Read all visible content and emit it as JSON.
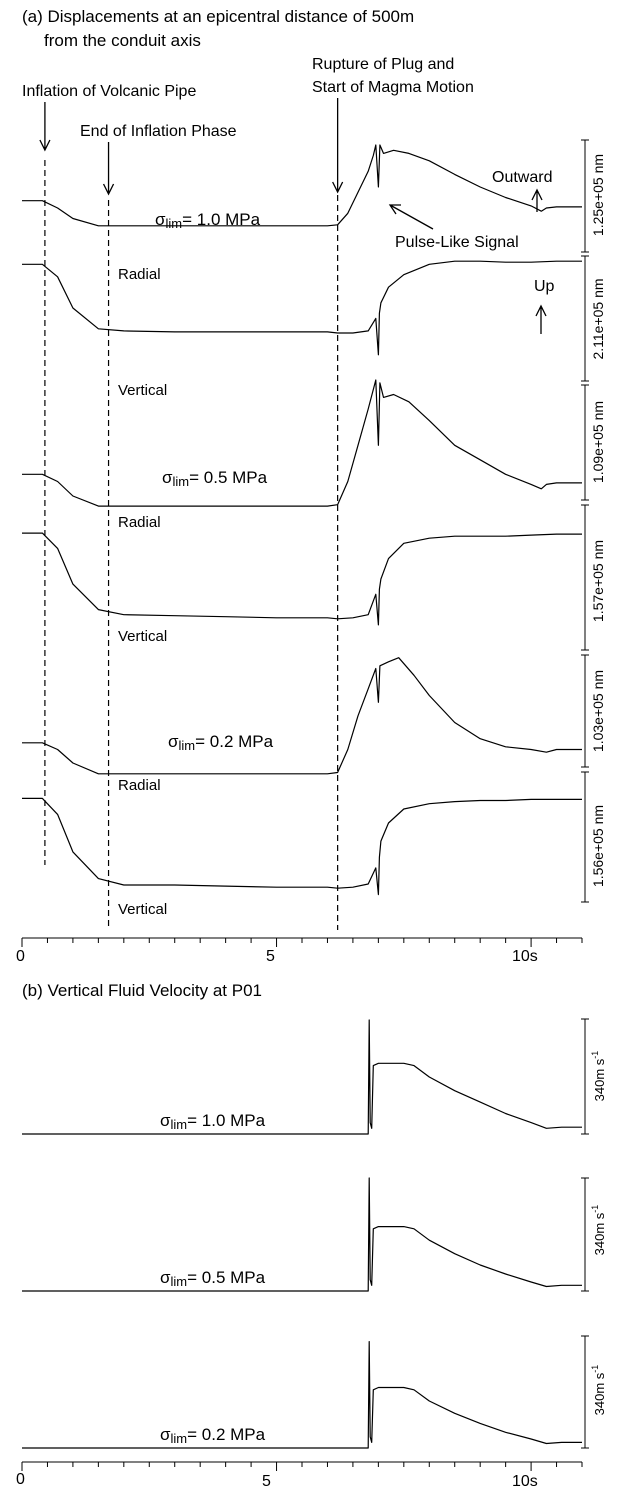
{
  "panel_a": {
    "title_line1": "(a) Displacements at an epicentral distance of 500m",
    "title_line2": "from the conduit axis",
    "annotations": {
      "inflation": "Inflation of Volcanic Pipe",
      "end_inflation": "End of Inflation Phase",
      "rupture_line1": "Rupture of Plug and",
      "rupture_line2": "Start of Magma Motion",
      "pulse": "Pulse-Like Signal",
      "outward": "Outward",
      "up": "Up"
    },
    "sigma_symbol": "σ",
    "sigma_subscript": "lim",
    "sigma_labels": [
      "= 1.0 MPa",
      "= 0.5 MPa",
      "= 0.2 MPa"
    ],
    "component_labels": [
      "Radial",
      "Vertical",
      "Radial",
      "Vertical",
      "Radial",
      "Vertical"
    ],
    "scale_labels": [
      "1.25e+05 nm",
      "2.11e+05 nm",
      "1.09e+05 nm",
      "1.57e+05 nm",
      "1.03e+05 nm",
      "1.56e+05 nm"
    ],
    "x_ticks": [
      "0",
      "5",
      "10s"
    ]
  },
  "panel_b": {
    "title": "(b) Vertical Fluid Velocity at P01",
    "sigma_labels": [
      "= 1.0 MPa",
      "= 0.5 MPa",
      "= 0.2 MPa"
    ],
    "scale_labels": [
      "340m s",
      "340m s",
      "340m s"
    ],
    "scale_exponent": "-1",
    "x_ticks": [
      "0",
      "5",
      "10s"
    ]
  },
  "chart_data": [
    {
      "type": "line",
      "title": "(a) Displacements at an epicentral distance of 500m from the conduit axis",
      "xlabel": "",
      "ylabel": "",
      "x_range": [
        0,
        11
      ],
      "event_times_s": {
        "inflation_start": 0.45,
        "inflation_end": 1.7,
        "rupture": 6.2
      },
      "series": [
        {
          "name": "Radial",
          "sigma_lim_MPa": 1.0,
          "scale_nm": 125000,
          "x": [
            0,
            0.4,
            0.7,
            1.0,
            1.5,
            2.0,
            3.0,
            4.0,
            5.0,
            6.0,
            6.2,
            6.4,
            6.6,
            6.8,
            6.9,
            6.95,
            7.0,
            7.03,
            7.1,
            7.3,
            7.6,
            8.0,
            8.5,
            9.0,
            9.5,
            10.0,
            10.2,
            10.3,
            10.5,
            11.0
          ],
          "y": [
            0.47,
            0.47,
            0.4,
            0.3,
            0.23,
            0.23,
            0.23,
            0.23,
            0.23,
            0.23,
            0.24,
            0.35,
            0.55,
            0.75,
            0.9,
            1.0,
            0.6,
            1.0,
            0.92,
            0.95,
            0.92,
            0.85,
            0.72,
            0.6,
            0.5,
            0.42,
            0.37,
            0.4,
            0.41,
            0.41
          ]
        },
        {
          "name": "Vertical",
          "sigma_lim_MPa": 1.0,
          "scale_nm": 211000,
          "x": [
            0,
            0.4,
            0.7,
            1.0,
            1.5,
            2.0,
            3.0,
            4.0,
            5.0,
            6.0,
            6.2,
            6.5,
            6.8,
            6.95,
            7.0,
            7.02,
            7.05,
            7.2,
            7.5,
            8.0,
            8.5,
            9.0,
            9.5,
            10.0,
            10.5,
            11.0
          ],
          "y": [
            0.92,
            0.92,
            0.8,
            0.5,
            0.3,
            0.28,
            0.27,
            0.27,
            0.27,
            0.27,
            0.26,
            0.26,
            0.28,
            0.4,
            0.05,
            0.45,
            0.55,
            0.7,
            0.82,
            0.92,
            0.95,
            0.95,
            0.94,
            0.94,
            0.95,
            0.95
          ]
        },
        {
          "name": "Radial",
          "sigma_lim_MPa": 0.5,
          "scale_nm": 109000,
          "x": [
            0,
            0.4,
            0.7,
            1.0,
            1.5,
            2.0,
            3.0,
            4.0,
            5.0,
            6.0,
            6.2,
            6.4,
            6.6,
            6.8,
            6.95,
            7.0,
            7.03,
            7.1,
            7.3,
            7.6,
            8.0,
            8.5,
            9.0,
            9.5,
            10.0,
            10.2,
            10.3,
            10.5,
            11.0
          ],
          "y": [
            0.35,
            0.35,
            0.3,
            0.2,
            0.13,
            0.13,
            0.13,
            0.13,
            0.13,
            0.13,
            0.14,
            0.3,
            0.55,
            0.8,
            1.0,
            0.55,
            0.98,
            0.88,
            0.9,
            0.85,
            0.72,
            0.55,
            0.45,
            0.35,
            0.28,
            0.25,
            0.28,
            0.29,
            0.29
          ]
        },
        {
          "name": "Vertical",
          "sigma_lim_MPa": 0.5,
          "scale_nm": 157000,
          "x": [
            0,
            0.4,
            0.7,
            1.0,
            1.5,
            2.0,
            3.0,
            4.0,
            5.0,
            6.0,
            6.2,
            6.5,
            6.8,
            6.95,
            7.0,
            7.02,
            7.05,
            7.2,
            7.5,
            8.0,
            8.5,
            9.0,
            9.5,
            10.0,
            10.5,
            11.0
          ],
          "y": [
            0.95,
            0.95,
            0.8,
            0.45,
            0.2,
            0.15,
            0.14,
            0.13,
            0.12,
            0.12,
            0.11,
            0.12,
            0.15,
            0.35,
            0.05,
            0.4,
            0.5,
            0.7,
            0.85,
            0.9,
            0.92,
            0.92,
            0.92,
            0.93,
            0.94,
            0.94
          ]
        },
        {
          "name": "Radial",
          "sigma_lim_MPa": 0.2,
          "scale_nm": 103000,
          "x": [
            0,
            0.4,
            0.7,
            1.0,
            1.5,
            2.0,
            3.0,
            4.0,
            5.0,
            6.0,
            6.2,
            6.4,
            6.6,
            6.8,
            6.95,
            7.0,
            7.03,
            7.2,
            7.4,
            7.7,
            8.0,
            8.5,
            9.0,
            9.5,
            10.0,
            10.3,
            10.5,
            11.0
          ],
          "y": [
            0.35,
            0.35,
            0.3,
            0.2,
            0.12,
            0.12,
            0.12,
            0.12,
            0.12,
            0.12,
            0.13,
            0.3,
            0.55,
            0.75,
            0.9,
            0.65,
            0.92,
            0.95,
            0.98,
            0.85,
            0.7,
            0.5,
            0.38,
            0.32,
            0.3,
            0.28,
            0.3,
            0.3
          ]
        },
        {
          "name": "Vertical",
          "sigma_lim_MPa": 0.2,
          "scale_nm": 156000,
          "x": [
            0,
            0.4,
            0.7,
            1.0,
            1.5,
            2.0,
            3.0,
            4.0,
            5.0,
            6.0,
            6.2,
            6.5,
            6.8,
            6.95,
            7.0,
            7.02,
            7.05,
            7.2,
            7.5,
            8.0,
            8.5,
            9.0,
            9.5,
            10.0,
            10.5,
            11.0
          ],
          "y": [
            0.95,
            0.95,
            0.8,
            0.45,
            0.2,
            0.14,
            0.14,
            0.13,
            0.12,
            0.12,
            0.11,
            0.12,
            0.15,
            0.3,
            0.05,
            0.4,
            0.55,
            0.72,
            0.85,
            0.9,
            0.92,
            0.93,
            0.93,
            0.94,
            0.94,
            0.94
          ]
        }
      ]
    },
    {
      "type": "line",
      "title": "(b) Vertical Fluid Velocity at P01",
      "xlabel": "",
      "ylabel": "",
      "x_range": [
        0,
        11
      ],
      "series": [
        {
          "name": "",
          "sigma_lim_MPa": 1.0,
          "scale_m_per_s": 340,
          "x": [
            0,
            6.8,
            6.82,
            6.84,
            6.87,
            6.9,
            7.0,
            7.5,
            7.7,
            8.0,
            8.5,
            9.0,
            9.5,
            10.0,
            10.3,
            10.6,
            11.0
          ],
          "y": [
            0,
            0,
            1.0,
            0.1,
            0.05,
            0.6,
            0.62,
            0.62,
            0.6,
            0.5,
            0.38,
            0.28,
            0.18,
            0.1,
            0.05,
            0.06,
            0.06
          ]
        },
        {
          "name": "",
          "sigma_lim_MPa": 0.5,
          "scale_m_per_s": 340,
          "x": [
            0,
            6.8,
            6.82,
            6.84,
            6.87,
            6.9,
            7.0,
            7.5,
            7.7,
            8.0,
            8.5,
            9.0,
            9.5,
            10.0,
            10.3,
            10.6,
            11.0
          ],
          "y": [
            0,
            0,
            1.0,
            0.1,
            0.05,
            0.55,
            0.57,
            0.57,
            0.55,
            0.45,
            0.33,
            0.23,
            0.15,
            0.08,
            0.04,
            0.05,
            0.05
          ]
        },
        {
          "name": "",
          "sigma_lim_MPa": 0.2,
          "scale_m_per_s": 340,
          "x": [
            0,
            6.8,
            6.82,
            6.84,
            6.87,
            6.9,
            7.0,
            7.5,
            7.7,
            8.0,
            8.5,
            9.0,
            9.5,
            10.0,
            10.3,
            10.6,
            11.0
          ],
          "y": [
            0,
            0,
            0.95,
            0.1,
            0.05,
            0.52,
            0.54,
            0.54,
            0.52,
            0.42,
            0.31,
            0.22,
            0.14,
            0.08,
            0.04,
            0.05,
            0.05
          ]
        }
      ]
    }
  ]
}
